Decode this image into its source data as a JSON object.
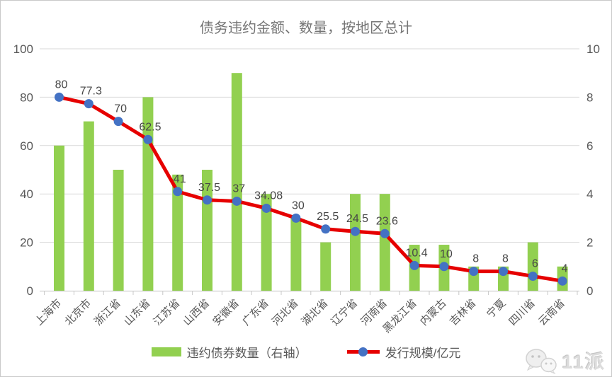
{
  "window": {
    "background": "#ffffff",
    "frame_border_color": "#c9c9c9"
  },
  "chart_data": {
    "type": "combo-bar-line",
    "title": "债务违约金额、数量，按地区总计",
    "categories": [
      "上海市",
      "北京市",
      "浙江省",
      "山东省",
      "江苏省",
      "山西省",
      "安徽省",
      "广东省",
      "河北省",
      "湖北省",
      "辽宁省",
      "河南省",
      "黑龙江省",
      "内蒙古",
      "吉林省",
      "宁夏",
      "四川省",
      "云南省"
    ],
    "series": [
      {
        "name": "违约债券数量（右轴）",
        "type": "bar",
        "axis": "right",
        "color": "#92d050",
        "values": [
          6,
          7,
          5,
          8,
          4.8,
          5,
          9,
          4,
          3,
          2,
          4,
          4,
          1.9,
          1.9,
          1,
          1,
          2,
          1
        ]
      },
      {
        "name": "发行规模/亿元",
        "type": "line",
        "axis": "left",
        "color": "#e60000",
        "marker_color": "#4472c4",
        "values": [
          80,
          77.3,
          70,
          62.5,
          41,
          37.5,
          37,
          34.08,
          30,
          25.5,
          24.5,
          23.6,
          10.4,
          10,
          8,
          8,
          6,
          4
        ],
        "labels": [
          "80",
          "77.3",
          "70",
          "62.5",
          "41",
          "37.5",
          "37",
          "34.08",
          "30",
          "25.5",
          "24.5",
          "23.6",
          "10.4",
          "10",
          "8",
          "8",
          "6",
          "4"
        ]
      }
    ],
    "left_axis": {
      "min": 0,
      "max": 100,
      "ticks": [
        0,
        20,
        40,
        60,
        80,
        100
      ],
      "tick_labels": [
        "0",
        "20",
        "40",
        "60",
        "80",
        "100"
      ]
    },
    "right_axis": {
      "min": 0,
      "max": 10,
      "ticks": [
        0,
        2,
        4,
        6,
        8,
        10
      ],
      "tick_labels": [
        "0",
        "2",
        "4",
        "6",
        "8",
        "10"
      ]
    },
    "grid": true,
    "legend_position": "bottom",
    "gridline_color": "#d9d9d9",
    "axis_line_color": "#bfbfbf",
    "tick_color": "#c8c8c8",
    "axis_text_color": "#595959",
    "data_label_color": "#474747"
  },
  "watermark": {
    "icon": "wechat-bubbles-icon",
    "text": "11派"
  }
}
